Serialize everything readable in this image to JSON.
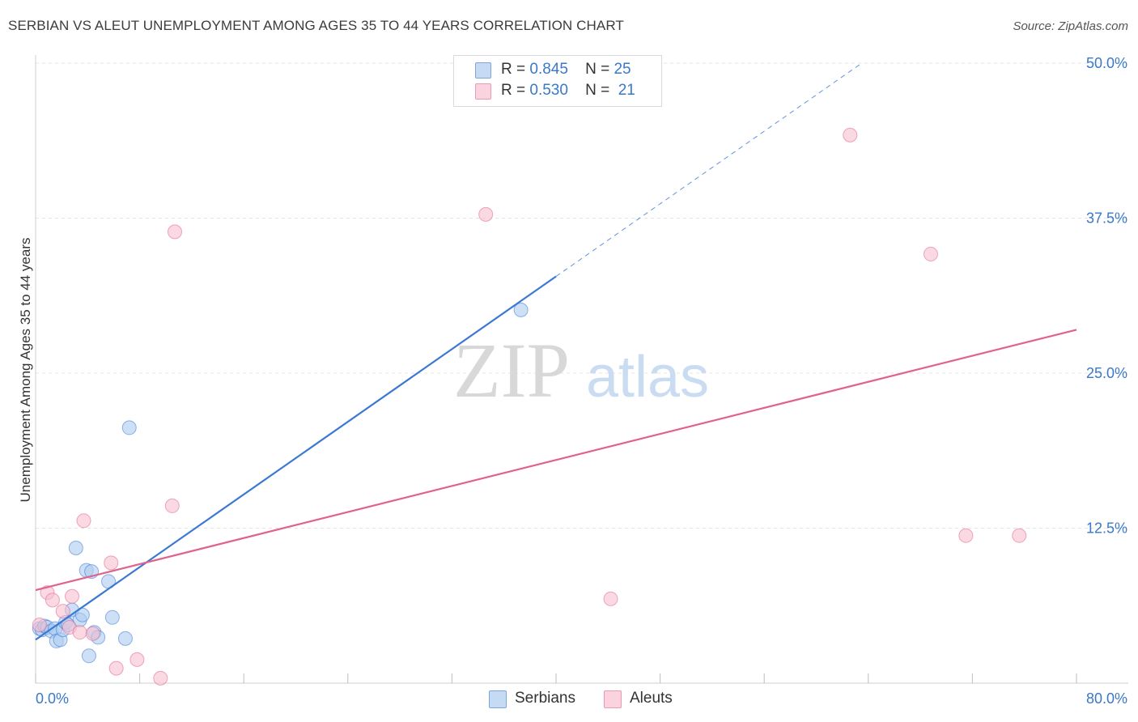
{
  "header": {
    "title": "SERBIAN VS ALEUT UNEMPLOYMENT AMONG AGES 35 TO 44 YEARS CORRELATION CHART",
    "source": "Source: ZipAtlas.com"
  },
  "legend": {
    "rows": [
      {
        "r_label": "R =",
        "r_value": "0.845",
        "n_label": "N =",
        "n_value": "25",
        "color": "#aecbf0"
      },
      {
        "r_label": "R =",
        "r_value": "0.530",
        "n_label": "N =",
        "n_value": "21",
        "color": "#f7bfd0"
      }
    ]
  },
  "bottom_legend": {
    "items": [
      {
        "label": "Serbians",
        "color": "#aecbf0"
      },
      {
        "label": "Aleuts",
        "color": "#f7bfd0"
      }
    ]
  },
  "watermark": {
    "zip": "ZIP",
    "atlas": "atlas"
  },
  "chart_data": {
    "type": "scatter",
    "title": "SERBIAN VS ALEUT UNEMPLOYMENT AMONG AGES 35 TO 44 YEARS CORRELATION CHART",
    "xlabel": "",
    "ylabel": "Unemployment Among Ages 35 to 44 years",
    "xlim": [
      0,
      80
    ],
    "ylim": [
      0,
      50
    ],
    "x_tick_labels": [
      "0.0%",
      "80.0%"
    ],
    "y_tick_labels": [
      "12.5%",
      "25.0%",
      "37.5%",
      "50.0%"
    ],
    "y_ticks": [
      12.5,
      25.0,
      37.5,
      50.0
    ],
    "grid": true,
    "legend_position": "top-center",
    "series": [
      {
        "name": "Serbians",
        "color": "#3a78d4",
        "fill": "#aecbf0",
        "r": 0.845,
        "n": 25,
        "points": [
          [
            0.3,
            4.4
          ],
          [
            0.5,
            4.3
          ],
          [
            0.7,
            4.6
          ],
          [
            0.9,
            4.5
          ],
          [
            1.2,
            4.2
          ],
          [
            1.5,
            4.4
          ],
          [
            1.6,
            3.4
          ],
          [
            1.9,
            3.5
          ],
          [
            2.1,
            4.3
          ],
          [
            2.3,
            4.9
          ],
          [
            2.5,
            4.7
          ],
          [
            2.8,
            5.9
          ],
          [
            3.1,
            10.9
          ],
          [
            3.4,
            5.1
          ],
          [
            3.6,
            5.5
          ],
          [
            3.9,
            9.1
          ],
          [
            4.1,
            2.2
          ],
          [
            4.3,
            9.0
          ],
          [
            4.5,
            4.1
          ],
          [
            4.8,
            3.7
          ],
          [
            5.6,
            8.2
          ],
          [
            5.9,
            5.3
          ],
          [
            6.9,
            3.6
          ],
          [
            7.2,
            20.6
          ],
          [
            37.3,
            30.1
          ]
        ],
        "trend": {
          "x0": 0,
          "y0": 3.5,
          "x1": 40,
          "y1": 32.8,
          "x_ext": 63.5,
          "y_ext": 50.0
        }
      },
      {
        "name": "Aleuts",
        "color": "#e0628f",
        "fill": "#f7bfd0",
        "r": 0.53,
        "n": 21,
        "points": [
          [
            0.3,
            4.7
          ],
          [
            0.9,
            7.3
          ],
          [
            1.3,
            6.7
          ],
          [
            2.1,
            5.8
          ],
          [
            2.6,
            4.5
          ],
          [
            2.8,
            7.0
          ],
          [
            3.4,
            4.1
          ],
          [
            3.7,
            13.1
          ],
          [
            4.4,
            4.0
          ],
          [
            5.8,
            9.7
          ],
          [
            6.2,
            1.2
          ],
          [
            7.8,
            1.9
          ],
          [
            9.6,
            0.4
          ],
          [
            10.5,
            14.3
          ],
          [
            10.7,
            36.4
          ],
          [
            34.6,
            37.8
          ],
          [
            44.2,
            6.8
          ],
          [
            62.6,
            44.2
          ],
          [
            68.8,
            34.6
          ],
          [
            71.5,
            11.9
          ],
          [
            75.6,
            11.9
          ]
        ],
        "trend": {
          "x0": 0,
          "y0": 7.5,
          "x1": 80,
          "y1": 28.5
        }
      }
    ]
  }
}
